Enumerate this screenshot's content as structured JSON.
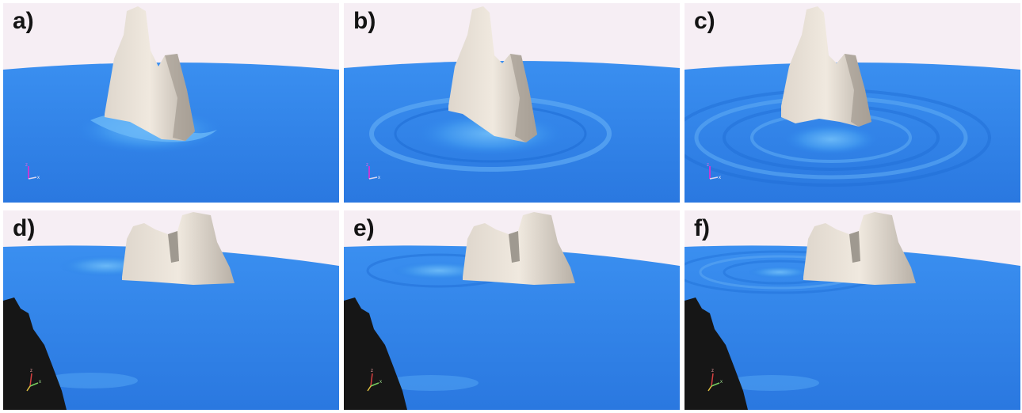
{
  "panels": [
    {
      "label": "a)",
      "axis_labels": {
        "z": "z",
        "x": "x"
      }
    },
    {
      "label": "b)",
      "axis_labels": {
        "z": "z",
        "x": "x"
      }
    },
    {
      "label": "c)",
      "axis_labels": {
        "z": "z",
        "x": "x"
      }
    },
    {
      "label": "d)",
      "axis_labels": {
        "z": "z",
        "x": "x"
      }
    },
    {
      "label": "e)",
      "axis_labels": {
        "z": "z",
        "x": "x"
      }
    },
    {
      "label": "f)",
      "axis_labels": {
        "z": "z",
        "x": "x"
      }
    }
  ],
  "colors": {
    "sky": "#f6eef4",
    "water": "#2f84ea",
    "water_light": "#57a6f2",
    "rock": "#e6ded4",
    "rock_shadow": "#8f877f",
    "cliff": "#161616"
  }
}
